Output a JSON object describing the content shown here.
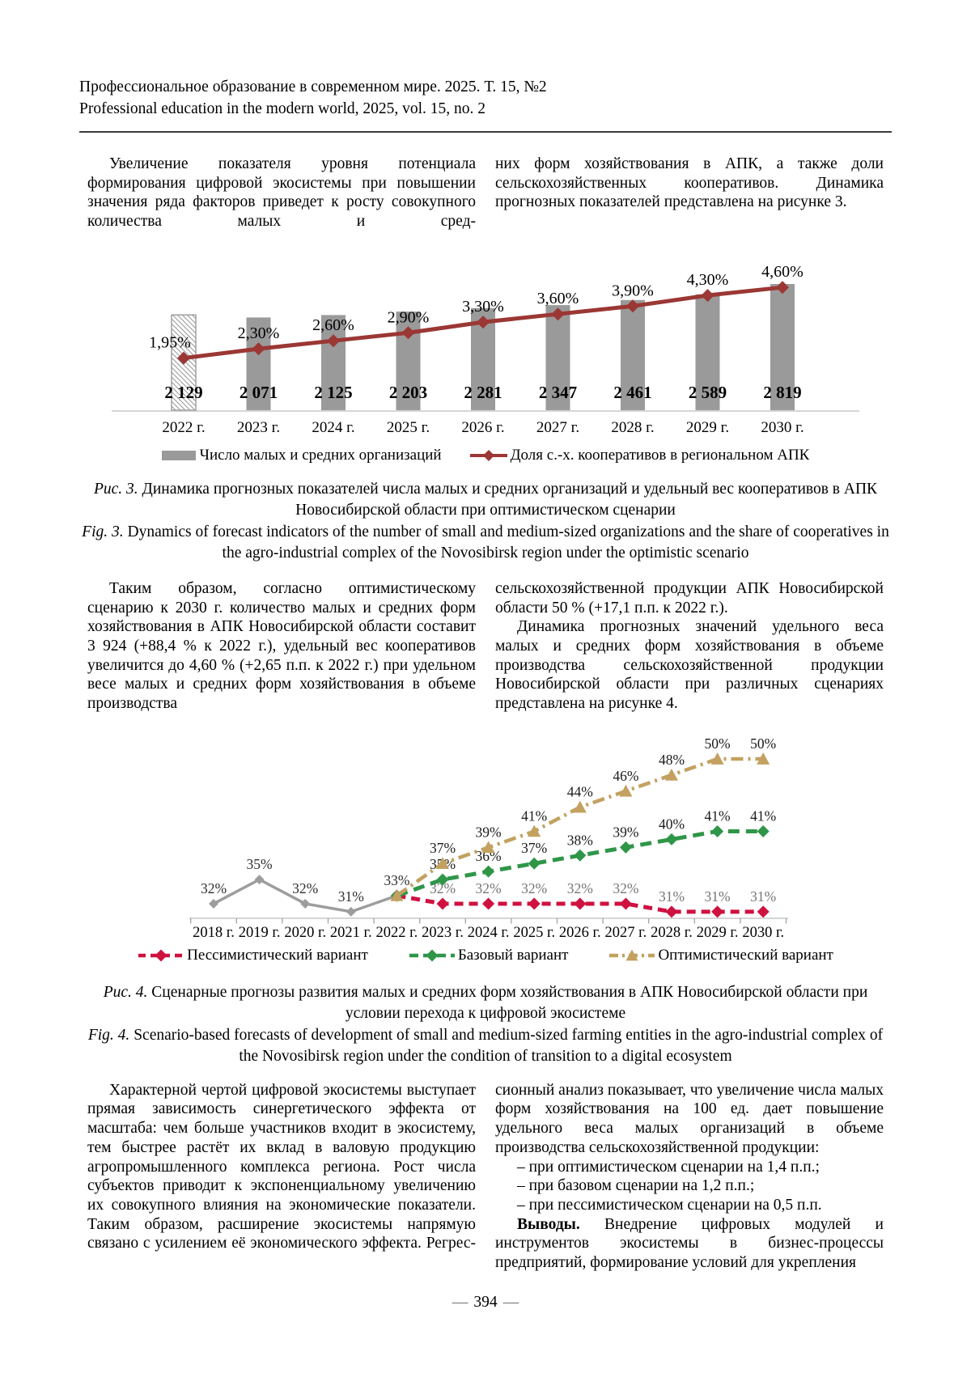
{
  "header": {
    "line_ru": "Профессиональное образование в современном мире. 2025. Т. 15, №2",
    "line_en": "Professional education in the modern world, 2025, vol. 15, no. 2"
  },
  "body": {
    "blocks": [
      {
        "left": [
          {
            "indent": true,
            "cont": true,
            "text": "Увеличение показателя уровня потенциала формирования цифровой экосистемы при повышении значения ряда факторов приведет к росту совокупного количества малых и сред-"
          }
        ],
        "right": [
          {
            "indent": false,
            "cont": false,
            "text": "них форм хозяйствования в АПК, а также доли сельскохозяйственных кооперативов. Динамика прогнозных показателей представлена на рисунке 3."
          }
        ]
      },
      {
        "left": [
          {
            "indent": true,
            "cont": true,
            "text": "Таким образом, согласно оптимистическому сценарию к 2030 г. количество малых и средних форм хозяйствования в АПК Новосибирской области составит 3 924 (+88,4 % к 2022 г.), удельный вес кооперативов увеличится до 4,60 % (+2,65 п.п. к 2022 г.) при удельном весе малых и средних форм хозяйствования в объеме производства"
          }
        ],
        "right": [
          {
            "indent": false,
            "cont": false,
            "text": "сельскохозяйственной продукции АПК Новосибирской области 50 % (+17,1 п.п. к 2022 г.)."
          },
          {
            "indent": true,
            "cont": false,
            "text": "Динамика прогнозных значений удельного веса малых и средних форм хозяйствования в объеме производства сельскохозяйственной продукции Новосибирской области при различных сценариях представлена на рисунке 4."
          }
        ]
      },
      {
        "left": [
          {
            "indent": true,
            "cont": true,
            "text": "Характерной чертой цифровой экосистемы выступает прямая зависимость синергетического эффекта от масштаба: чем больше участников входит в экосистему, тем быстрее растёт их вклад в валовую продукцию агропромышленного комплекса региона. Рост числа субъектов приводит к экспоненциальному увеличению их совокупного влияния на экономические показатели. Таким образом, расширение экосистемы напрямую связано с усилением её экономического эффекта. Регрес-"
          }
        ],
        "right": [
          {
            "indent": false,
            "cont": false,
            "text": "сионный анализ показывает, что увеличение числа малых форм хозяйствования на 100 ед. дает повышение удельного веса малых организаций в объеме производства сельскохозяйственной продукции:"
          },
          {
            "indent": true,
            "cont": false,
            "text": "– при оптимистическом сценарии на 1,4 п.п.;"
          },
          {
            "indent": true,
            "cont": false,
            "text": "– при базовом сценарии на 1,2 п.п.;"
          },
          {
            "indent": true,
            "cont": false,
            "text": "– при пессимистическом сценарии на 0,5 п.п."
          },
          {
            "indent": true,
            "cont": false,
            "lead_bold": "Выводы.",
            "text": " Внедрение цифровых модулей и инструментов экосистемы в бизнес-процессы предприятий, формирование условий для укрепления"
          }
        ]
      }
    ]
  },
  "chart_data": [
    {
      "id": "fig3",
      "type": "bar+line",
      "title": "",
      "categories": [
        "2022 г.",
        "2023 г.",
        "2024 г.",
        "2025 г.",
        "2026 г.",
        "2027 г.",
        "2028 г.",
        "2029 г.",
        "2030 г."
      ],
      "legend_position": "bottom",
      "value_axes_hidden": true,
      "grid": false,
      "series": [
        {
          "name": "Число малых и средних организаций",
          "kind": "bar",
          "values": [
            2129,
            2071,
            2125,
            2203,
            2281,
            2347,
            2461,
            2589,
            2819
          ],
          "labels": [
            "2 129",
            "2 071",
            "2 125",
            "2 203",
            "2 281",
            "2 347",
            "2 461",
            "2 589",
            "2 819"
          ],
          "color": "#9a9a9a",
          "first_bar_hatched": true
        },
        {
          "name": "Доля с.-х. кооперативов в региональном АПК",
          "kind": "line",
          "values": [
            1.95,
            2.3,
            2.6,
            2.9,
            3.3,
            3.6,
            3.9,
            4.3,
            4.6
          ],
          "labels": [
            "1,95%",
            "2,30%",
            "2,60%",
            "2,90%",
            "3,30%",
            "3,60%",
            "3,90%",
            "4,30%",
            "4,60%"
          ],
          "color": "#9b3734",
          "marker": "diamond"
        }
      ]
    },
    {
      "id": "fig4",
      "type": "line",
      "title": "",
      "categories": [
        "2018 г.",
        "2019 г.",
        "2020 г.",
        "2021 г.",
        "2022 г.",
        "2023 г.",
        "2024 г.",
        "2025 г.",
        "2026 г.",
        "2027 г.",
        "2028 г.",
        "2029 г.",
        "2030 г."
      ],
      "ylim": [
        30,
        52
      ],
      "grid": false,
      "legend_position": "bottom",
      "series": [
        {
          "name": "",
          "id": "fact-2018-2022",
          "in_legend": false,
          "values": [
            32,
            35,
            32,
            31,
            33,
            null,
            null,
            null,
            null,
            null,
            null,
            null,
            null
          ],
          "labels": [
            "32%",
            "35%",
            "32%",
            "31%",
            "33%",
            null,
            null,
            null,
            null,
            null,
            null,
            null,
            null
          ],
          "color": "#9d9d9d",
          "dash": "",
          "legend_dash": "",
          "marker": "diamond",
          "width": 3.5,
          "label_color": "#2f2f2f"
        },
        {
          "name": "Пессимистический вариант",
          "in_legend": true,
          "values": [
            null,
            null,
            null,
            null,
            33,
            32,
            32,
            32,
            32,
            32,
            31,
            31,
            31
          ],
          "labels": [
            null,
            null,
            null,
            null,
            null,
            "32%",
            "32%",
            "32%",
            "32%",
            "32%",
            "31%",
            "31%",
            "31%"
          ],
          "color": "#cf1140",
          "dash": "11 7",
          "legend_dash": "9 6",
          "marker": "diamond",
          "width": 5,
          "label_color": "#757575"
        },
        {
          "name": "Базовый вариант",
          "in_legend": true,
          "values": [
            null,
            null,
            null,
            null,
            33,
            35,
            36,
            37,
            38,
            39,
            40,
            41,
            41
          ],
          "labels": [
            null,
            null,
            null,
            null,
            null,
            "35%",
            "36%",
            "37%",
            "38%",
            "39%",
            "40%",
            "41%",
            "41%"
          ],
          "color": "#2f9648",
          "dash": "14 8",
          "legend_dash": "11 6",
          "marker": "diamond",
          "width": 5,
          "label_color": "#1a1a1a"
        },
        {
          "name": "Оптимистический вариант",
          "in_legend": true,
          "values": [
            null,
            null,
            null,
            null,
            33,
            37,
            39,
            41,
            44,
            46,
            48,
            50,
            50
          ],
          "labels": [
            null,
            null,
            null,
            null,
            null,
            "37%",
            "39%",
            "41%",
            "44%",
            "46%",
            "48%",
            "50%",
            "50%"
          ],
          "color": "#c3a160",
          "dash": "15 6 3 6",
          "legend_dash": "11 5 3 5",
          "marker": "triangle",
          "width": 4.5,
          "label_color": "#1a1a1a"
        }
      ]
    }
  ],
  "figures": {
    "fig3": {
      "ru_label": "Рис. 3.",
      "ru_text": "Динамика прогнозных показателей числа малых и средних организаций и удельный вес кооперативов в АПК Новосибирской области при оптимистическом сценарии",
      "en_label": "Fig. 3.",
      "en_text": "Dynamics of forecast indicators of the number of small and medium-sized organizations and the share of cooperatives in the agro-industrial complex of the Novosibirsk region under the optimistic scenario"
    },
    "fig4": {
      "ru_label": "Рис. 4.",
      "ru_text": "Сценарные прогнозы развития малых и средних форм хозяйствования в АПК Новосибирской области при условии перехода к цифровой экосистеме",
      "en_label": "Fig. 4.",
      "en_text": "Scenario-based forecasts of development of small and medium-sized farming entities in the agro-industrial complex of the Novosibirsk region under the condition of transition to a digital ecosystem"
    }
  },
  "footer": {
    "dash": "—",
    "page_number": "394"
  }
}
